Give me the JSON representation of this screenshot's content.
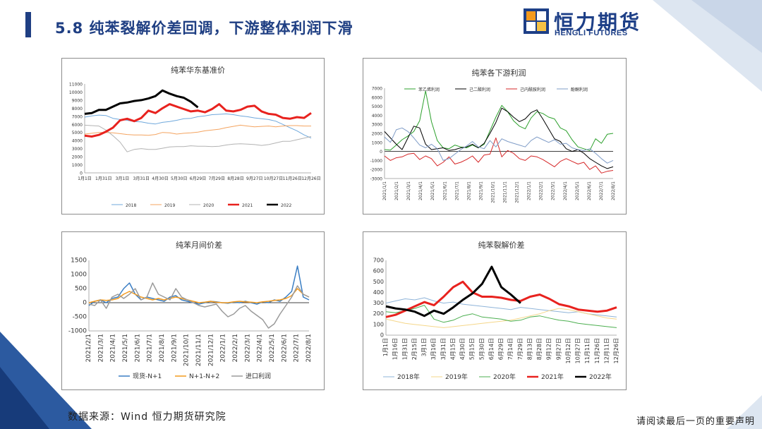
{
  "header": {
    "title": "5.8 纯苯裂解价差回调，下游整体利润下滑",
    "logo_cn": "恒力期货",
    "logo_en": "HENGLI FUTURES"
  },
  "footer": {
    "source": "数据来源：Wind  恒力期货研究院",
    "disclaimer": "请阅读最后一页的重要声明"
  },
  "colors": {
    "brand": "#1f3f83",
    "accent_orange": "#f39a1e"
  },
  "chart_data": [
    {
      "type": "line",
      "title": "纯苯华东基准价",
      "ylim": [
        0,
        11000
      ],
      "yticks": [
        0,
        1000,
        2000,
        3000,
        4000,
        5000,
        6000,
        7000,
        8000,
        9000,
        10000,
        11000
      ],
      "xticks": [
        "1月1日",
        "1月31日",
        "3月1日",
        "3月31日",
        "4月30日",
        "5月30日",
        "6月29日",
        "7月29日",
        "8月28日",
        "9月27日",
        "10月27日",
        "11月26日",
        "12月26日"
      ],
      "legend_position": "bottom",
      "series": [
        {
          "name": "2018",
          "color": "#6fa8dc",
          "width": 1,
          "values": [
            6900,
            7050,
            7150,
            7100,
            6750,
            6600,
            6500,
            6350,
            6300,
            6150,
            6050,
            6250,
            6350,
            6500,
            6700,
            6750,
            6950,
            7050,
            7200,
            7250,
            7300,
            7200,
            7050,
            6950,
            6800,
            6700,
            6600,
            6400,
            6000,
            5600,
            5200,
            4700,
            4300
          ]
        },
        {
          "name": "2019",
          "color": "#f4a460",
          "width": 1,
          "values": [
            4800,
            4900,
            5000,
            5000,
            4950,
            4850,
            4750,
            4700,
            4700,
            4650,
            4750,
            5000,
            4950,
            4800,
            4900,
            4950,
            5050,
            5200,
            5300,
            5400,
            5600,
            5750,
            5900,
            5800,
            5700,
            5750,
            5800,
            5700,
            5800,
            5850,
            5850,
            5800,
            5800
          ]
        },
        {
          "name": "2020",
          "color": "#b3b3b3",
          "width": 1,
          "values": [
            5900,
            5850,
            5800,
            5300,
            4600,
            3800,
            2600,
            2900,
            3000,
            2900,
            2900,
            3050,
            3200,
            3250,
            3250,
            3350,
            3300,
            3300,
            3250,
            3300,
            3450,
            3550,
            3600,
            3550,
            3500,
            3400,
            3500,
            3700,
            3900,
            3900,
            4100,
            4300,
            4500
          ]
        },
        {
          "name": "2021",
          "color": "#e8221e",
          "width": 3,
          "values": [
            4600,
            4500,
            4700,
            5100,
            5600,
            6500,
            6700,
            6400,
            6800,
            7700,
            7400,
            8000,
            8500,
            8200,
            7900,
            7600,
            7700,
            7500,
            7900,
            8500,
            7700,
            7600,
            7800,
            8200,
            8300,
            7600,
            7300,
            7200,
            6800,
            6700,
            6900,
            6800,
            7400
          ]
        },
        {
          "name": "2022",
          "color": "#000000",
          "width": 3,
          "values": [
            7300,
            7400,
            7800,
            7800,
            8200,
            8600,
            8700,
            8900,
            9000,
            9200,
            9500,
            10200,
            9800,
            9500,
            9300,
            8800,
            8100,
            null,
            null,
            null,
            null,
            null,
            null,
            null,
            null,
            null,
            null,
            null,
            null,
            null,
            null,
            null,
            null
          ]
        }
      ]
    },
    {
      "type": "line",
      "title": "纯苯各下游利润",
      "ylim": [
        -3000,
        7000
      ],
      "yticks": [
        -3000,
        -2000,
        -1000,
        0,
        1000,
        2000,
        3000,
        4000,
        5000,
        6000,
        7000
      ],
      "xticks": [
        "2021/1/1",
        "2021/2/1",
        "2021/3/1",
        "2021/4/1",
        "2021/5/1",
        "2021/6/1",
        "2021/7/1",
        "2021/8/1",
        "2021/9/1",
        "2021/10/1",
        "2021/11/1",
        "2021/12/1",
        "2022/1/1",
        "2022/2/1",
        "2022/3/1",
        "2022/4/1",
        "2022/5/1",
        "2022/6/1",
        "2022/7/1",
        "2022/8/1"
      ],
      "legend_position": "top",
      "series": [
        {
          "name": "苯乙烯利润",
          "color": "#2ca02c",
          "width": 1,
          "values": [
            200,
            150,
            700,
            1300,
            1700,
            2200,
            3400,
            6700,
            3300,
            1200,
            400,
            300,
            700,
            500,
            400,
            700,
            400,
            800,
            2300,
            3800,
            5100,
            4400,
            3400,
            2800,
            2500,
            3700,
            4400,
            4200,
            3800,
            3600,
            2600,
            2300,
            1300,
            500,
            300,
            100,
            1400,
            900,
            1900,
            2000
          ]
        },
        {
          "name": "己二酸利润",
          "color": "#000000",
          "width": 1,
          "values": [
            2200,
            1500,
            800,
            200,
            1500,
            2800,
            2600,
            800,
            200,
            300,
            400,
            100,
            200,
            400,
            500,
            800,
            400,
            900,
            2000,
            3200,
            4800,
            4400,
            3800,
            3300,
            3600,
            4300,
            4600,
            3600,
            2500,
            1400,
            1100,
            300,
            0,
            200,
            -200,
            -800,
            -1200,
            -1600,
            -1900,
            -1700
          ]
        },
        {
          "name": "己内酰胺利润",
          "color": "#d62728",
          "width": 1,
          "values": [
            -500,
            -1000,
            -700,
            -600,
            -300,
            -200,
            -900,
            -500,
            -800,
            -1600,
            -1200,
            -600,
            -1400,
            -1200,
            -900,
            -500,
            -1200,
            -400,
            -300,
            1500,
            -600,
            100,
            -200,
            -800,
            -1000,
            -500,
            -600,
            -900,
            -1300,
            -1700,
            -1100,
            -800,
            -1100,
            -1400,
            -1200,
            -2000,
            -1600,
            -2400,
            -2200,
            -2100
          ]
        },
        {
          "name": "酚酮利润",
          "color": "#7f9cc7",
          "width": 1,
          "values": [
            1600,
            1000,
            2400,
            2600,
            2200,
            1500,
            700,
            400,
            800,
            300,
            -1000,
            -800,
            -300,
            200,
            600,
            1100,
            500,
            300,
            1200,
            500,
            1400,
            1100,
            900,
            700,
            500,
            1200,
            1600,
            1300,
            1000,
            1300,
            800,
            900,
            400,
            200,
            100,
            300,
            -200,
            -800,
            -1300,
            -1000
          ]
        }
      ]
    },
    {
      "type": "line",
      "title": "纯苯月间价差",
      "ylim": [
        -1000,
        1500
      ],
      "yticks": [
        -1000,
        -500,
        0,
        500,
        1000,
        1500
      ],
      "xticks": [
        "2021/2/1",
        "2021/3/1",
        "2021/4/1",
        "2021/5/1",
        "2021/6/1",
        "2021/7/1",
        "2021/8/1",
        "2021/9/1",
        "2021/10/1",
        "2021/11/1",
        "2021/12/1",
        "2022/1/1",
        "2022/2/1",
        "2022/3/1",
        "2022/4/1",
        "2022/5/1",
        "2022/6/1",
        "2022/7/1",
        "2022/8/1"
      ],
      "legend_position": "bottom",
      "series": [
        {
          "name": "现货-N+1",
          "color": "#3a7ec4",
          "width": 1.5,
          "values": [
            -100,
            50,
            100,
            0,
            150,
            200,
            500,
            700,
            300,
            100,
            200,
            150,
            100,
            50,
            200,
            250,
            100,
            50,
            0,
            -50,
            0,
            50,
            30,
            0,
            -20,
            20,
            0,
            50,
            0,
            -50,
            30,
            0,
            100,
            50,
            200,
            400,
            1300,
            200,
            100
          ]
        },
        {
          "name": "N+1-N+2",
          "color": "#f39a1e",
          "width": 1.5,
          "values": [
            0,
            50,
            100,
            80,
            100,
            150,
            300,
            400,
            300,
            200,
            150,
            100,
            150,
            100,
            150,
            200,
            150,
            100,
            50,
            0,
            20,
            50,
            20,
            0,
            0,
            30,
            50,
            30,
            20,
            0,
            30,
            50,
            80,
            100,
            150,
            250,
            500,
            300,
            200
          ]
        },
        {
          "name": "进口利润",
          "color": "#9a9a9a",
          "width": 1.5,
          "values": [
            -50,
            -100,
            100,
            -200,
            200,
            300,
            150,
            300,
            500,
            100,
            200,
            700,
            300,
            200,
            100,
            500,
            200,
            100,
            0,
            -100,
            -150,
            -100,
            -50,
            -300,
            -500,
            -400,
            -200,
            -100,
            -300,
            -450,
            -600,
            -900,
            -750,
            -400,
            -100,
            200,
            600,
            300,
            200
          ]
        }
      ]
    },
    {
      "type": "line",
      "title": "纯苯裂解价差",
      "ylim": [
        0,
        700
      ],
      "yticks": [
        0,
        100,
        200,
        300,
        400,
        500,
        600,
        700
      ],
      "xticks": [
        "1月1日",
        "1月16日",
        "1月31日",
        "2月15日",
        "3月1日",
        "3月16日",
        "3月31日",
        "4月15日",
        "4月30日",
        "5月15日",
        "5月30日",
        "6月14日",
        "6月29日",
        "7月14日",
        "7月29日",
        "8月13日",
        "8月28日",
        "9月12日",
        "9月27日",
        "10月12日",
        "10月27日",
        "11月11日",
        "11月26日",
        "12月11日",
        "12月26日"
      ],
      "legend_position": "bottom",
      "series": [
        {
          "name": "2018年",
          "color": "#8fb4d9",
          "width": 1,
          "values": [
            300,
            320,
            340,
            330,
            350,
            320,
            300,
            310,
            290,
            280,
            270,
            260,
            250,
            240,
            260,
            250,
            240,
            230,
            220,
            210,
            220,
            200,
            190,
            180,
            170
          ]
        },
        {
          "name": "2019年",
          "color": "#f5d78a",
          "width": 1,
          "values": [
            150,
            130,
            110,
            100,
            90,
            80,
            70,
            80,
            90,
            100,
            110,
            120,
            130,
            140,
            160,
            180,
            200,
            230,
            250,
            240,
            220,
            200,
            180,
            160,
            150
          ]
        },
        {
          "name": "2020年",
          "color": "#4caf50",
          "width": 1,
          "values": [
            220,
            210,
            230,
            250,
            280,
            150,
            120,
            140,
            180,
            200,
            170,
            160,
            150,
            130,
            140,
            170,
            180,
            160,
            140,
            130,
            110,
            100,
            90,
            80,
            70
          ]
        },
        {
          "name": "2021年",
          "color": "#e8221e",
          "width": 3,
          "values": [
            170,
            190,
            230,
            270,
            310,
            280,
            360,
            450,
            500,
            400,
            360,
            360,
            350,
            330,
            320,
            360,
            380,
            340,
            290,
            270,
            240,
            230,
            220,
            230,
            260
          ]
        },
        {
          "name": "2022年",
          "color": "#000000",
          "width": 3,
          "values": [
            270,
            250,
            240,
            220,
            180,
            230,
            200,
            260,
            330,
            390,
            480,
            640,
            450,
            380,
            300,
            null,
            null,
            null,
            null,
            null,
            null,
            null,
            null,
            null,
            null
          ]
        }
      ]
    }
  ]
}
